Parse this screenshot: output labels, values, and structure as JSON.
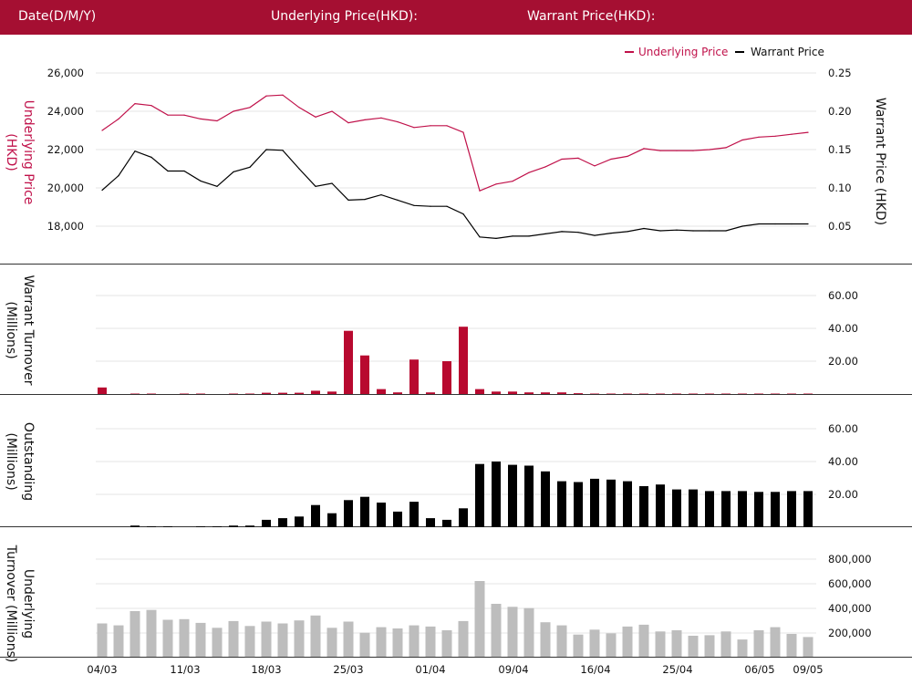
{
  "header": {
    "date_label": "Date(D/M/Y)",
    "underlying_label": "Underlying Price(HKD):",
    "warrant_label": "Warrant Price(HKD):"
  },
  "colors": {
    "header": "#a50f32",
    "underlying": "#c0114a",
    "warrant": "#000000",
    "turnover_bar": "#b8092f",
    "outstanding_bar": "#000000",
    "underlying_turnover_bar": "#bdbdbd"
  },
  "chart_data": [
    {
      "type": "line",
      "legend": [
        "Underlying Price",
        "Warrant Price"
      ],
      "legend_placement": "top-right",
      "ylabel_left": "Underlying Price (HKD)",
      "ylabel_right": "Warrant  Price (HKD)",
      "yticks_left": [
        "26,000",
        "24,000",
        "22,000",
        "20,000",
        "18,000"
      ],
      "yticks_right": [
        "0.25",
        "0.20",
        "0.15",
        "0.10",
        "0.05"
      ],
      "ylim_left": [
        16500,
        26500
      ],
      "ylim_right": [
        0.0125,
        0.2625
      ],
      "series": [
        {
          "name": "Underlying Price",
          "axis": "left",
          "values": [
            23000,
            23600,
            24400,
            24300,
            23800,
            23800,
            23600,
            23500,
            24000,
            24200,
            24800,
            24850,
            24200,
            23700,
            24000,
            23400,
            23550,
            23650,
            23450,
            23150,
            23250,
            23250,
            22900,
            19850,
            20200,
            20350,
            20800,
            21100,
            21500,
            21550,
            21150,
            21500,
            21650,
            22050,
            21950,
            21950,
            21950,
            22000,
            22100,
            22500,
            22650,
            22700,
            22800,
            22900
          ]
        },
        {
          "name": "Warrant Price",
          "axis": "right",
          "values": [
            0.097,
            0.116,
            0.148,
            0.14,
            0.122,
            0.122,
            0.109,
            0.102,
            0.121,
            0.127,
            0.15,
            0.149,
            0.125,
            0.102,
            0.106,
            0.084,
            0.085,
            0.091,
            0.084,
            0.077,
            0.076,
            0.076,
            0.066,
            0.036,
            0.034,
            0.037,
            0.037,
            0.04,
            0.043,
            0.042,
            0.038,
            0.041,
            0.043,
            0.047,
            0.044,
            0.045,
            0.044,
            0.044,
            0.044,
            0.05,
            0.053,
            0.053,
            0.053,
            0.053
          ]
        }
      ]
    },
    {
      "type": "bar",
      "ylabel": "Warrant  Turnover (Millions)",
      "yticks": [
        "60.00",
        "40.00",
        "20.00"
      ],
      "ylim": [
        0,
        70
      ],
      "values": [
        4,
        0,
        0.3,
        0.3,
        0,
        0.3,
        0.3,
        0,
        0.3,
        0.3,
        0.8,
        0.8,
        0.8,
        2,
        1.5,
        38.5,
        23.5,
        3,
        1,
        21,
        1,
        20,
        41,
        3,
        1.5,
        1.5,
        1,
        1,
        1,
        0.5,
        0.3,
        0.3,
        0.3,
        0.3,
        0.3,
        0.3,
        0.3,
        0.3,
        0.3,
        0.3,
        0.3,
        0.3,
        0.3,
        0.3
      ]
    },
    {
      "type": "bar",
      "ylabel": "Outstanding (Millions)",
      "yticks": [
        "60.00",
        "40.00",
        "20.00"
      ],
      "ylim": [
        0,
        70
      ],
      "values": [
        0,
        0,
        1,
        0.5,
        0.5,
        0,
        0.5,
        0.5,
        1,
        1,
        4.5,
        5.5,
        6.5,
        13.5,
        8.5,
        16.5,
        18.5,
        15,
        9.5,
        15.5,
        5.5,
        4.5,
        11.5,
        38.5,
        40,
        38,
        37.5,
        34,
        28,
        27.5,
        29.5,
        29,
        28,
        25,
        26,
        23,
        23,
        22,
        22,
        22,
        21.5,
        21.5,
        22,
        22
      ]
    },
    {
      "type": "bar",
      "ylabel": "Underlying Turnover (Millions)",
      "yticks": [
        "800,000",
        "600,000",
        "400,000",
        "200,000"
      ],
      "ylim": [
        0,
        840000
      ],
      "values": [
        270000,
        255000,
        370000,
        380000,
        300000,
        305000,
        275000,
        235000,
        290000,
        250000,
        285000,
        270000,
        295000,
        335000,
        235000,
        285000,
        195000,
        240000,
        230000,
        255000,
        245000,
        215000,
        290000,
        615000,
        430000,
        405000,
        395000,
        280000,
        255000,
        180000,
        220000,
        190000,
        245000,
        260000,
        205000,
        215000,
        170000,
        175000,
        205000,
        140000,
        215000,
        240000,
        185000,
        160000
      ]
    }
  ],
  "x_ticks": [
    "04/03",
    "11/03",
    "18/03",
    "25/03",
    "01/04",
    "09/04",
    "16/04",
    "25/04",
    "06/05",
    "09/05"
  ]
}
